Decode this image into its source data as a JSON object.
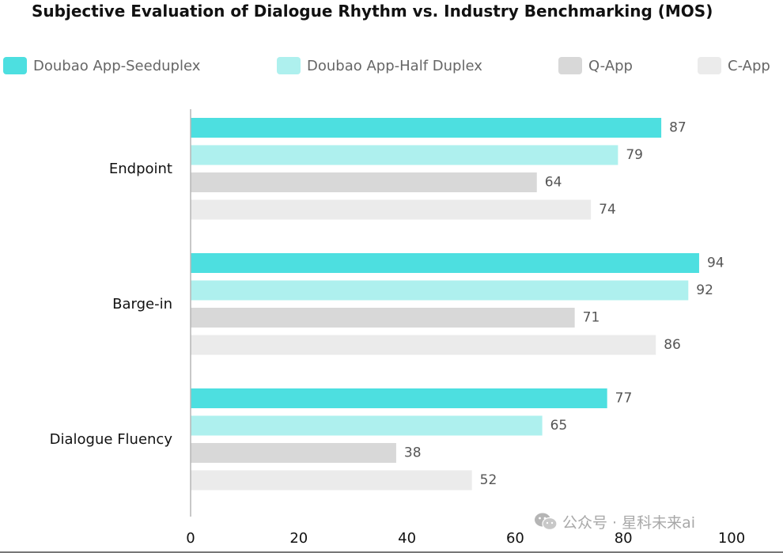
{
  "chart_data": {
    "type": "bar",
    "orientation": "horizontal",
    "title": "Subjective Evaluation of Dialogue Rhythm vs. Industry Benchmarking (MOS)",
    "xlabel": "",
    "ylabel": "",
    "categories": [
      "Endpoint",
      "Barge-in",
      "Dialogue Fluency"
    ],
    "series": [
      {
        "name": "Doubao App-Seeduplex",
        "color": "#4ddfe0",
        "values": [
          87,
          94,
          77
        ]
      },
      {
        "name": "Doubao App-Half Duplex",
        "color": "#aef0ee",
        "values": [
          79,
          92,
          65
        ]
      },
      {
        "name": "Q-App",
        "color": "#d8d8d8",
        "values": [
          64,
          71,
          38
        ]
      },
      {
        "name": "C-App",
        "color": "#ebebeb",
        "values": [
          74,
          86,
          52
        ]
      }
    ],
    "xlim": [
      0,
      100
    ],
    "xticks": [
      "0",
      "20",
      "40",
      "60",
      "80",
      "100"
    ],
    "grid": false,
    "legend_position": "top",
    "data_labels": true
  },
  "watermark": {
    "icon": "wechat-icon",
    "text": "公众号 · 星科未来ai"
  }
}
